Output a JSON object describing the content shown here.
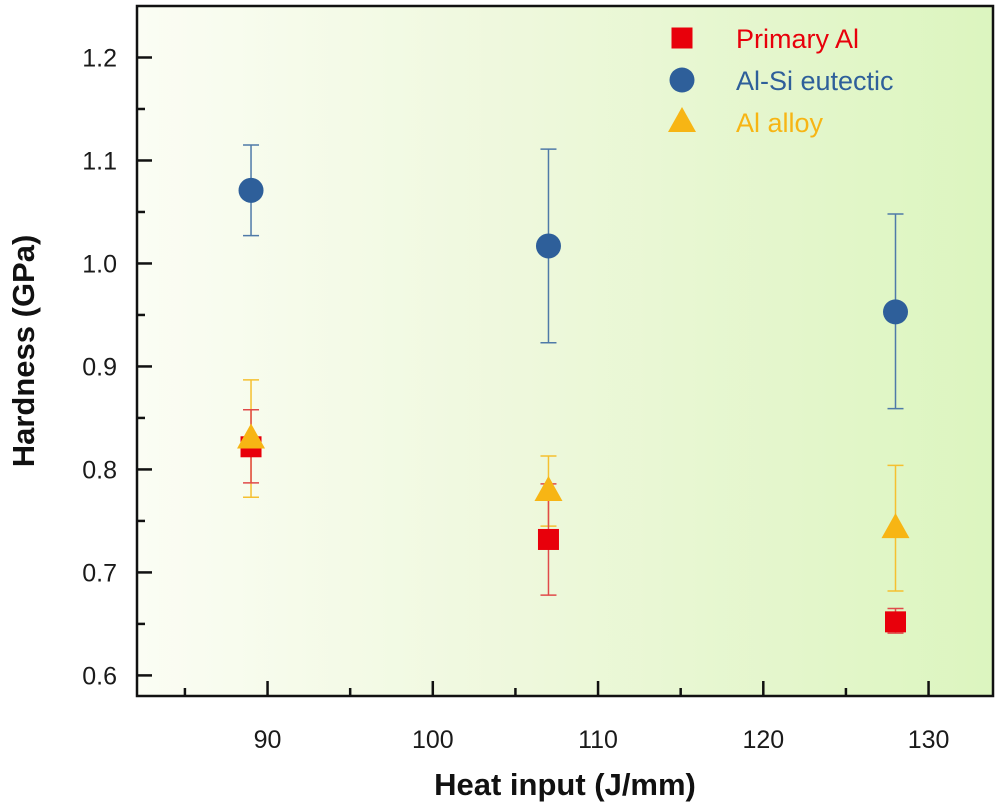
{
  "chart_data": {
    "type": "scatter",
    "title": "",
    "xlabel": "Heat input (J/mm)",
    "ylabel": "Hardness (GPa)",
    "xlim": [
      82.1,
      133.9
    ],
    "ylim": [
      0.58,
      1.25
    ],
    "x_ticks": [
      90,
      100,
      110,
      120,
      130
    ],
    "x_tick_labels": [
      "90",
      "100",
      "110",
      "120",
      "130"
    ],
    "x_minor_ticks": [
      85,
      95,
      105,
      115,
      125
    ],
    "y_ticks": [
      0.6,
      0.7,
      0.8,
      0.9,
      1.0,
      1.1,
      1.2
    ],
    "y_tick_labels": [
      "0.6",
      "0.7",
      "0.8",
      "0.9",
      "1.0",
      "1.1",
      "1.2"
    ],
    "y_minor_ticks": [
      0.65,
      0.75,
      0.85,
      0.95,
      1.05,
      1.15
    ],
    "grid": false,
    "background": "gradient white-to-light-green (left to right)",
    "legend_position": "top-right",
    "series": [
      {
        "name": "Primary Al",
        "marker": "square",
        "color": "#e8000b",
        "x": [
          89,
          107,
          128
        ],
        "y": [
          0.822,
          0.732,
          0.652
        ],
        "err_high": [
          0.858,
          0.786,
          0.665
        ],
        "err_low": [
          0.787,
          0.678,
          0.641
        ]
      },
      {
        "name": "Al-Si eutectic",
        "marker": "circle",
        "color": "#2e5f9a",
        "x": [
          89,
          107,
          128
        ],
        "y": [
          1.071,
          1.017,
          0.953
        ],
        "err_high": [
          1.115,
          1.111,
          1.048
        ],
        "err_low": [
          1.027,
          0.923,
          0.859
        ]
      },
      {
        "name": "Al alloy",
        "marker": "triangle",
        "color": "#f7b514",
        "x": [
          89,
          107,
          128
        ],
        "y": [
          0.83,
          0.779,
          0.743
        ],
        "err_high": [
          0.887,
          0.813,
          0.804
        ],
        "err_low": [
          0.773,
          0.745,
          0.682
        ]
      }
    ]
  }
}
